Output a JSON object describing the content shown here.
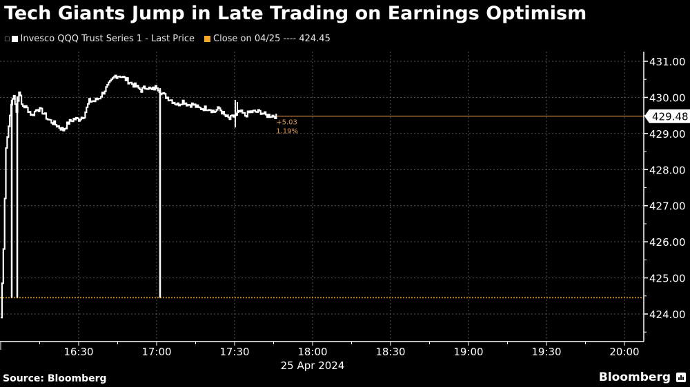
{
  "title": "Tech Giants Jump in Late Trading on Earnings Optimism",
  "legend": [
    {
      "label": "Invesco QQQ Trust Series 1 - Last Price",
      "color": "#ffffff"
    },
    {
      "label": "Close on 04/25 ---- 424.45",
      "color": "#f5a623"
    }
  ],
  "footer": {
    "source": "Source: Bloomberg",
    "brand": "Bloomberg"
  },
  "colors": {
    "background": "#000000",
    "line": "#ffffff",
    "close_line": "#f5a623",
    "last_price_line": "#e39a55",
    "grid": "#666666"
  },
  "chart_data": {
    "type": "line",
    "title": "Tech Giants Jump in Late Trading on Earnings Optimism",
    "xlabel": "25 Apr 2024",
    "ylabel": "",
    "x_ticks": [
      "16:30",
      "17:00",
      "17:30",
      "18:00",
      "18:30",
      "19:00",
      "19:30",
      "20:00"
    ],
    "x_date_label": "25 Apr 2024",
    "y_ticks": [
      "424.00",
      "425.00",
      "426.00",
      "427.00",
      "428.00",
      "429.00",
      "430.00",
      "431.00"
    ],
    "ylim": [
      423.3,
      431.3
    ],
    "xlim": [
      "16:00",
      "20:05"
    ],
    "grid": true,
    "legend_position": "top-left",
    "last_price": "429.48",
    "change_abs": "+5.03",
    "change_pct": "1.19%",
    "reference_close": 424.45,
    "series": [
      {
        "name": "Invesco QQQ Trust Series 1 - Last Price",
        "x": [
          "16:00",
          "16:01",
          "16:02",
          "16:03",
          "16:04",
          "16:05",
          "16:06",
          "16:07",
          "16:08",
          "16:10",
          "16:12",
          "16:14",
          "16:16",
          "16:18",
          "16:20",
          "16:22",
          "16:24",
          "16:26",
          "16:28",
          "16:30",
          "16:32",
          "16:34",
          "16:36",
          "16:38",
          "16:40",
          "16:42",
          "16:44",
          "16:46",
          "16:48",
          "16:50",
          "16:52",
          "16:54",
          "16:56",
          "16:58",
          "17:00",
          "17:02",
          "17:04",
          "17:06",
          "17:08",
          "17:10",
          "17:12",
          "17:14",
          "17:16",
          "17:18",
          "17:20",
          "17:22",
          "17:24",
          "17:26",
          "17:28",
          "17:30",
          "17:32",
          "17:34",
          "17:36",
          "17:38",
          "17:40",
          "17:42",
          "17:44",
          "17:46"
        ],
        "values": [
          423.9,
          425.8,
          428.6,
          429.2,
          429.8,
          430.1,
          429.6,
          430.2,
          429.8,
          429.7,
          429.5,
          429.7,
          429.6,
          429.4,
          429.3,
          429.2,
          429.1,
          429.3,
          429.4,
          429.4,
          429.5,
          429.9,
          429.9,
          430.0,
          430.2,
          430.4,
          430.6,
          430.6,
          430.5,
          430.4,
          430.3,
          430.2,
          430.3,
          430.2,
          430.3,
          430.1,
          430.0,
          429.9,
          429.8,
          429.9,
          429.8,
          429.8,
          429.7,
          429.7,
          429.7,
          429.6,
          429.7,
          429.5,
          429.4,
          429.5,
          429.6,
          429.5,
          429.6,
          429.6,
          429.6,
          429.5,
          429.5,
          429.48
        ]
      },
      {
        "name": "Close on 04/25",
        "values": [
          424.45
        ]
      }
    ]
  }
}
